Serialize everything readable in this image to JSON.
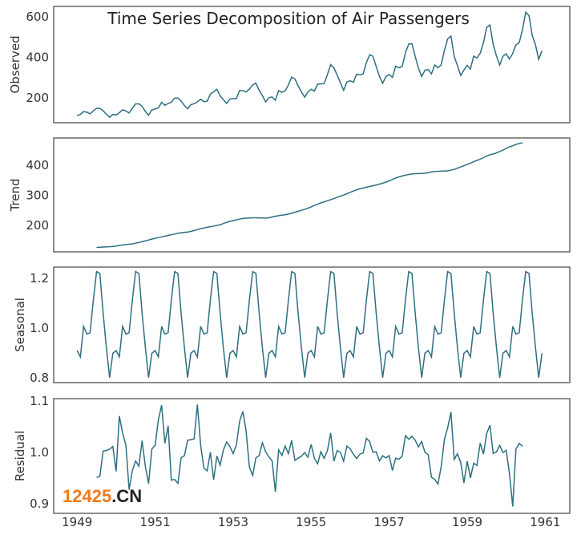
{
  "chart_data": {
    "type": "line",
    "title": "Time Series Decomposition of Air Passengers",
    "x_ticks": [
      "1949",
      "1951",
      "1953",
      "1955",
      "1957",
      "1959",
      "1961"
    ],
    "x_start": "1949-01",
    "frequency": "monthly",
    "xlim": [
      1948.4,
      1961.63
    ],
    "line_color": "#2e6f82",
    "grid": false,
    "panels": [
      {
        "ylabel": "Observed",
        "ylim": [
          77,
          651
        ],
        "yticks": [
          "200",
          "400",
          "600"
        ],
        "ytick_values": [
          200,
          400,
          600
        ]
      },
      {
        "ylabel": "Trend",
        "ylim": [
          112,
          491
        ],
        "yticks": [
          "200",
          "300",
          "400"
        ],
        "ytick_values": [
          200,
          300,
          400
        ]
      },
      {
        "ylabel": "Seasonal",
        "ylim": [
          0.781,
          1.245
        ],
        "yticks": [
          "0.8",
          "1.0",
          "1.2"
        ],
        "ytick_values": [
          0.8,
          1.0,
          1.2
        ]
      },
      {
        "ylabel": "Residual",
        "ylim": [
          0.881,
          1.105
        ],
        "yticks": [
          "0.9",
          "1.0",
          "1.1"
        ],
        "ytick_values": [
          0.9,
          1.0,
          1.1
        ]
      }
    ],
    "observed": [
      112,
      118,
      132,
      129,
      121,
      135,
      148,
      148,
      136,
      119,
      104,
      118,
      115,
      126,
      141,
      135,
      125,
      149,
      170,
      170,
      158,
      133,
      114,
      140,
      145,
      150,
      178,
      163,
      172,
      178,
      199,
      199,
      184,
      162,
      146,
      166,
      171,
      180,
      193,
      181,
      183,
      218,
      230,
      242,
      209,
      191,
      172,
      194,
      196,
      196,
      236,
      235,
      229,
      243,
      264,
      272,
      237,
      211,
      180,
      201,
      204,
      188,
      235,
      227,
      234,
      264,
      302,
      293,
      259,
      229,
      203,
      229,
      242,
      233,
      267,
      269,
      270,
      315,
      364,
      347,
      312,
      274,
      237,
      278,
      284,
      277,
      317,
      313,
      318,
      374,
      413,
      405,
      355,
      306,
      271,
      306,
      315,
      301,
      356,
      348,
      355,
      422,
      465,
      467,
      404,
      347,
      305,
      336,
      340,
      318,
      362,
      348,
      363,
      435,
      491,
      505,
      404,
      359,
      310,
      337,
      360,
      342,
      406,
      396,
      420,
      472,
      548,
      559,
      463,
      407,
      362,
      405,
      417,
      391,
      419,
      461,
      472,
      535,
      622,
      606,
      508,
      461,
      390,
      432
    ],
    "seasonal_factors_by_month": [
      0.91,
      0.884,
      1.007,
      0.976,
      0.981,
      1.113,
      1.227,
      1.22,
      1.06,
      0.922,
      0.801,
      0.899
    ],
    "model": "multiplicative"
  },
  "watermark": {
    "main": "12425",
    "suffix": ".CN"
  }
}
